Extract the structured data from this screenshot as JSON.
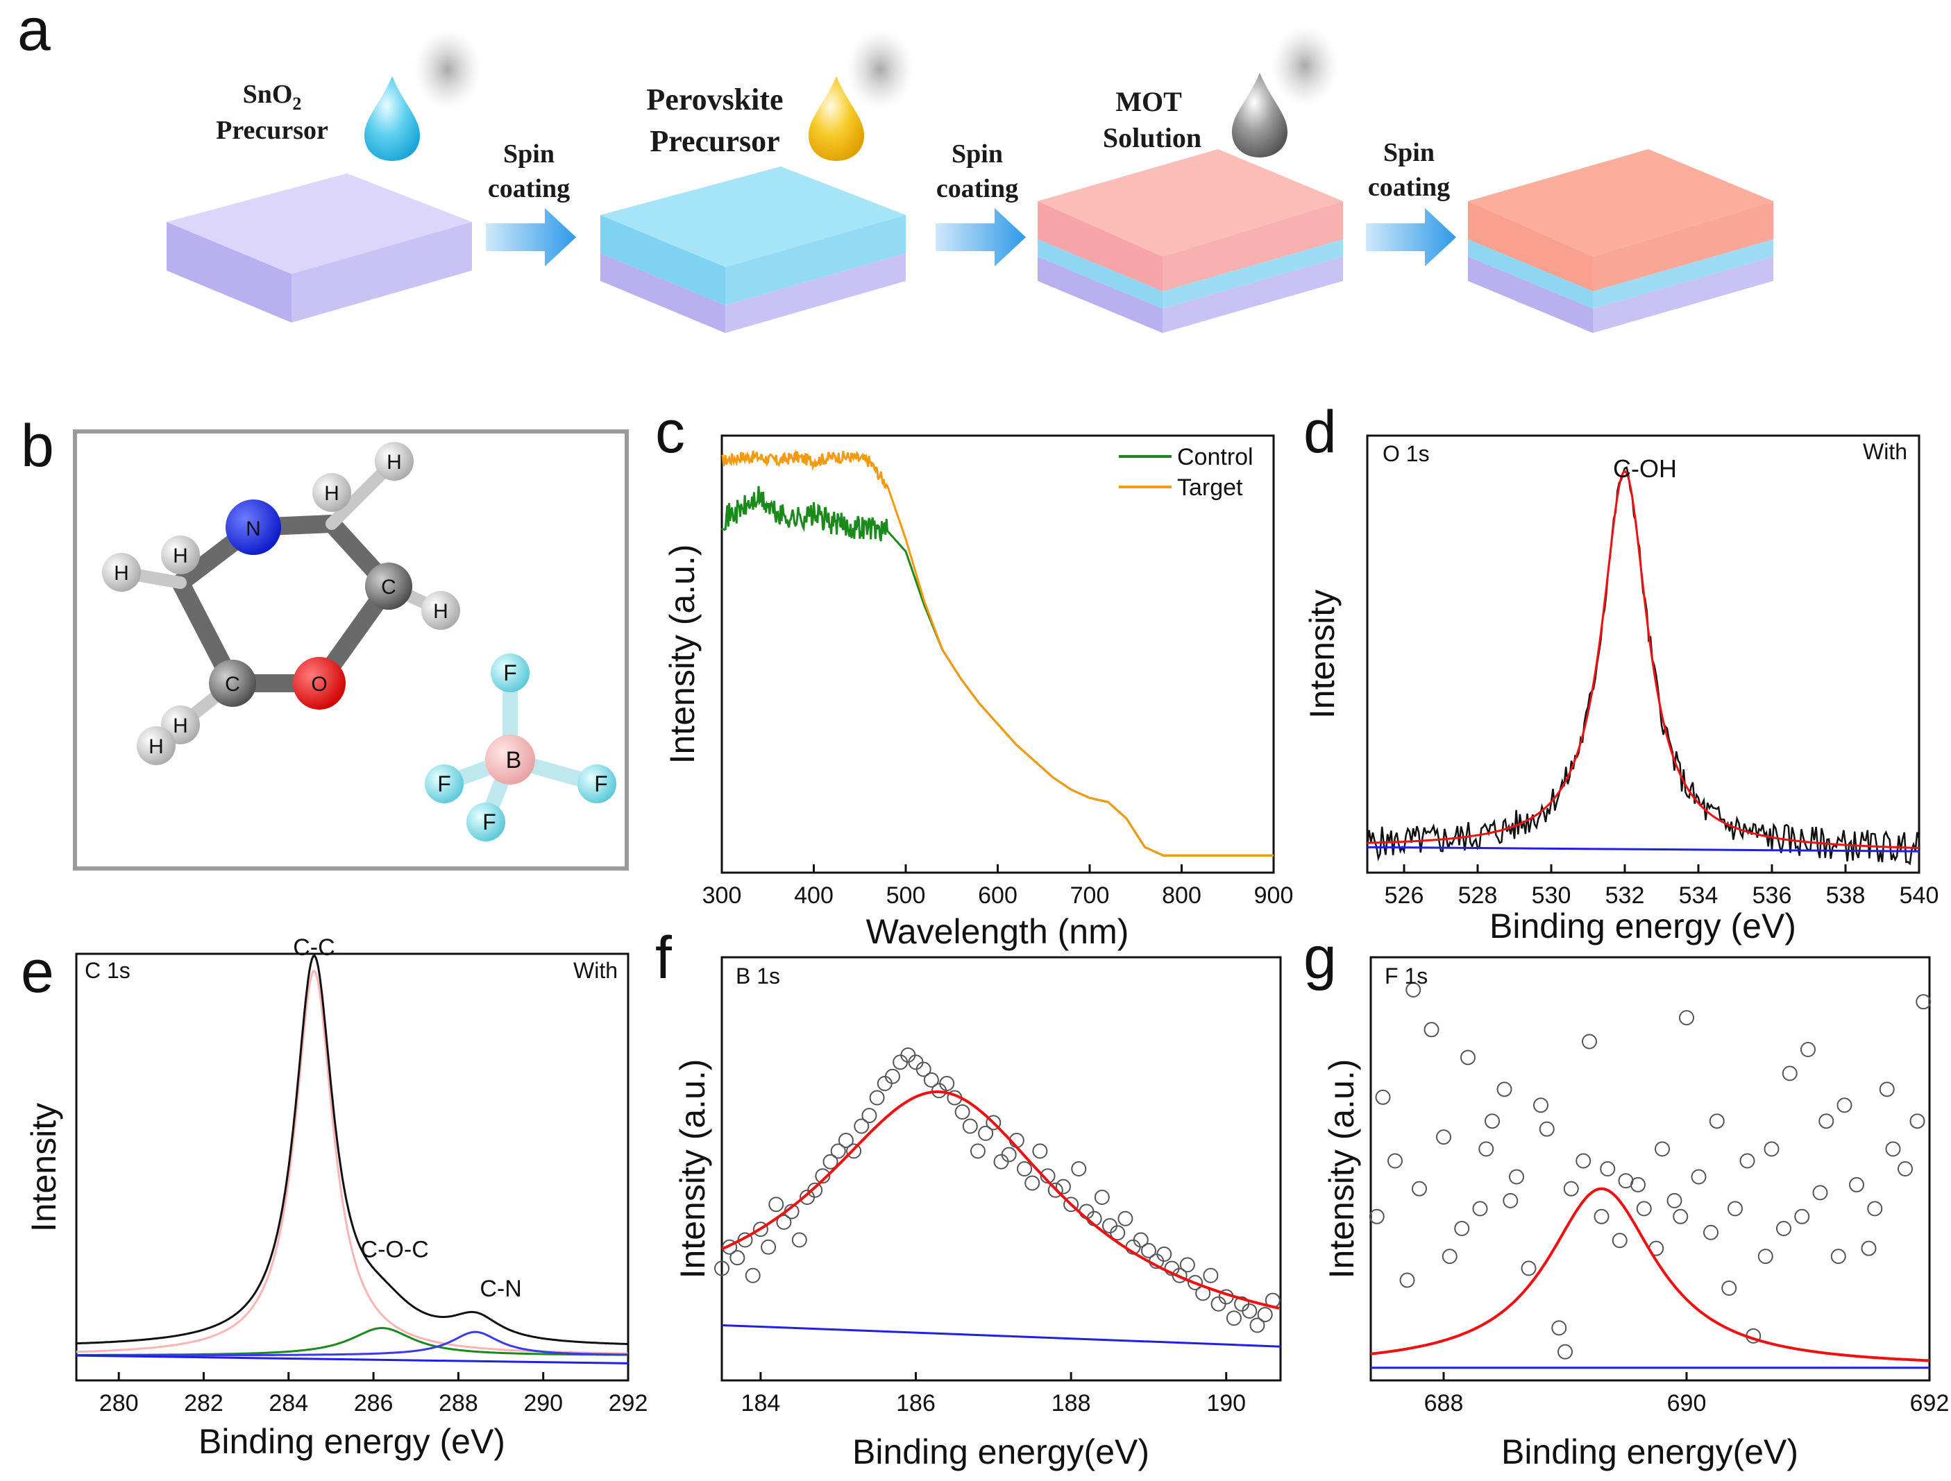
{
  "figure": {
    "panel_labels": [
      "a",
      "b",
      "c",
      "d",
      "e",
      "f",
      "g"
    ],
    "colors": {
      "green": "#1a8a1a",
      "orange": "#f59a0c",
      "red": "#ee1111",
      "blue": "#1f1fe6",
      "black": "#111111",
      "pink": "#ffb3b3",
      "navy": "#3a3ae8"
    }
  },
  "panel_a": {
    "steps": [
      {
        "label_line1": "SnO",
        "subscript": "2",
        "label_line2": "Precursor",
        "drop": "blue-droplet-icon"
      },
      {
        "label_line1": "Perovskite",
        "label_line2": "Precursor",
        "drop": "yellow-droplet-icon"
      },
      {
        "label_line1": "MOT",
        "label_line2": "Solution",
        "drop": "gray-droplet-icon"
      }
    ],
    "arrow_line1": "Spin",
    "arrow_line2": "coating"
  },
  "panel_b": {
    "atoms_ring": [
      "N",
      "H",
      "H",
      "H",
      "H",
      "H",
      "C",
      "H",
      "H",
      "C",
      "O"
    ],
    "atoms_bf4": [
      "F",
      "B",
      "F",
      "F",
      "F"
    ]
  },
  "chart_data": [
    {
      "id": "c",
      "type": "line",
      "title": "",
      "xlabel": "Wavelength (nm)",
      "ylabel": "Intensity (a.u.)",
      "xlim": [
        300,
        900
      ],
      "ylim": [
        0,
        1
      ],
      "xticks": [
        "300",
        "400",
        "500",
        "600",
        "700",
        "800",
        "900"
      ],
      "legend_position": "top-right",
      "series": [
        {
          "name": "Control",
          "color": "#1a8a1a",
          "x": [
            300,
            320,
            340,
            360,
            380,
            400,
            420,
            440,
            460,
            480,
            500,
            520,
            540,
            560,
            580,
            600,
            620,
            640,
            660,
            680,
            700,
            720,
            740,
            760,
            780,
            800,
            820,
            840,
            860,
            880,
            900
          ],
          "y": [
            0.83,
            0.85,
            0.88,
            0.84,
            0.83,
            0.84,
            0.82,
            0.81,
            0.81,
            0.8,
            0.75,
            0.62,
            0.51,
            0.44,
            0.38,
            0.33,
            0.28,
            0.24,
            0.2,
            0.17,
            0.15,
            0.14,
            0.1,
            0.03,
            0.01,
            0.01,
            0.01,
            0.01,
            0.01,
            0.01,
            0.01
          ]
        },
        {
          "name": "Target",
          "color": "#f59a0c",
          "x": [
            300,
            320,
            340,
            360,
            380,
            400,
            420,
            440,
            460,
            480,
            500,
            520,
            540,
            560,
            580,
            600,
            620,
            640,
            660,
            680,
            700,
            720,
            740,
            760,
            780,
            800,
            820,
            840,
            860,
            880,
            900
          ],
          "y": [
            0.97,
            0.98,
            0.98,
            0.97,
            0.98,
            0.97,
            0.98,
            0.98,
            0.97,
            0.91,
            0.78,
            0.63,
            0.51,
            0.44,
            0.38,
            0.33,
            0.28,
            0.24,
            0.2,
            0.17,
            0.15,
            0.14,
            0.1,
            0.03,
            0.01,
            0.01,
            0.01,
            0.01,
            0.01,
            0.01,
            0.01
          ]
        }
      ]
    },
    {
      "id": "d",
      "type": "line",
      "title": "O 1s",
      "corner_note": "With",
      "peak_label": "C-OH",
      "xlabel": "Binding energy (eV)",
      "ylabel": "Intensity",
      "xlim": [
        525,
        540
      ],
      "ylim": [
        0,
        1
      ],
      "xticks": [
        "526",
        "528",
        "530",
        "532",
        "534",
        "536",
        "538",
        "540"
      ],
      "peak": {
        "center": 532.0,
        "height": 0.92,
        "width": 0.75
      },
      "series": [
        {
          "name": "raw",
          "color": "#111111"
        },
        {
          "name": "fit",
          "color": "#ee1111"
        },
        {
          "name": "background",
          "color": "#1f1fe6",
          "x": [
            525,
            540
          ],
          "y": [
            0.03,
            0.02
          ]
        }
      ]
    },
    {
      "id": "e",
      "type": "line",
      "title": "C 1s",
      "corner_note": "With",
      "xlabel": "Binding energy (eV)",
      "ylabel": "Intensity",
      "xlim": [
        279,
        292
      ],
      "ylim": [
        0,
        1
      ],
      "xticks": [
        "280",
        "282",
        "284",
        "286",
        "288",
        "290",
        "292"
      ],
      "peak_labels": [
        {
          "text": "C-C",
          "x": 284.6,
          "y": 1.04
        },
        {
          "text": "C-O-C",
          "x": 286.5,
          "y": 0.27
        },
        {
          "text": "C-N",
          "x": 289.0,
          "y": 0.17
        }
      ],
      "components": [
        {
          "name": "C-C",
          "color": "#ffb3b3",
          "center": 284.6,
          "height": 0.98,
          "width": 0.55
        },
        {
          "name": "C-O-C",
          "color": "#1a8a1a",
          "center": 286.2,
          "height": 0.07,
          "width": 0.9
        },
        {
          "name": "C-N",
          "color": "#3a3ae8",
          "center": 288.4,
          "height": 0.06,
          "width": 0.7
        }
      ],
      "envelope_color": "#111111"
    },
    {
      "id": "f",
      "type": "scatter",
      "title": "B 1s",
      "xlabel": "Binding energy(eV)",
      "ylabel": "Intensity (a.u.)",
      "xlim": [
        183.5,
        190.7
      ],
      "ylim": [
        0,
        1
      ],
      "xticks": [
        "184",
        "186",
        "188",
        "190"
      ],
      "points_x": [
        183.5,
        183.6,
        183.7,
        183.8,
        183.9,
        184.0,
        184.1,
        184.2,
        184.3,
        184.4,
        184.5,
        184.6,
        184.7,
        184.8,
        184.9,
        185.0,
        185.1,
        185.2,
        185.3,
        185.4,
        185.5,
        185.6,
        185.7,
        185.8,
        185.9,
        186.0,
        186.1,
        186.2,
        186.3,
        186.4,
        186.5,
        186.6,
        186.7,
        186.8,
        186.9,
        187.0,
        187.1,
        187.2,
        187.3,
        187.4,
        187.5,
        187.6,
        187.7,
        187.8,
        187.9,
        188.0,
        188.1,
        188.2,
        188.3,
        188.4,
        188.5,
        188.6,
        188.7,
        188.8,
        188.9,
        189.0,
        189.1,
        189.2,
        189.3,
        189.4,
        189.5,
        189.6,
        189.7,
        189.8,
        189.9,
        190.0,
        190.1,
        190.2,
        190.3,
        190.4,
        190.5,
        190.6
      ],
      "points_y": [
        0.22,
        0.28,
        0.25,
        0.3,
        0.2,
        0.33,
        0.28,
        0.4,
        0.35,
        0.38,
        0.3,
        0.42,
        0.44,
        0.48,
        0.52,
        0.55,
        0.58,
        0.55,
        0.62,
        0.65,
        0.7,
        0.74,
        0.76,
        0.8,
        0.82,
        0.8,
        0.78,
        0.75,
        0.72,
        0.74,
        0.7,
        0.66,
        0.62,
        0.55,
        0.6,
        0.63,
        0.52,
        0.54,
        0.58,
        0.5,
        0.46,
        0.55,
        0.48,
        0.44,
        0.45,
        0.4,
        0.5,
        0.38,
        0.36,
        0.42,
        0.34,
        0.32,
        0.36,
        0.28,
        0.3,
        0.27,
        0.24,
        0.26,
        0.22,
        0.2,
        0.23,
        0.18,
        0.15,
        0.2,
        0.12,
        0.14,
        0.08,
        0.12,
        0.1,
        0.06,
        0.09,
        0.13
      ],
      "fit": {
        "center": 186.3,
        "height": 0.68,
        "width": 1.9,
        "baseline_start": 0.06,
        "baseline_end": 0.0
      },
      "fit_color": "#ee1111",
      "baseline_color": "#1f1fe6"
    },
    {
      "id": "g",
      "type": "scatter",
      "title": "F 1s",
      "xlabel": "Binding energy(eV)",
      "ylabel": "Intensity (a.u.)",
      "xlim": [
        687.4,
        692
      ],
      "ylim": [
        0,
        1
      ],
      "xticks": [
        "688",
        "690",
        "692"
      ],
      "points_x": [
        687.45,
        687.5,
        687.6,
        687.7,
        687.75,
        687.8,
        687.9,
        688.0,
        688.05,
        688.15,
        688.2,
        688.3,
        688.35,
        688.4,
        688.5,
        688.55,
        688.6,
        688.7,
        688.8,
        688.85,
        688.95,
        689.0,
        689.05,
        689.15,
        689.2,
        689.3,
        689.35,
        689.45,
        689.5,
        689.6,
        689.65,
        689.75,
        689.8,
        689.9,
        689.95,
        690.0,
        690.1,
        690.2,
        690.25,
        690.35,
        690.4,
        690.5,
        690.55,
        690.65,
        690.7,
        690.8,
        690.85,
        690.95,
        691.0,
        691.1,
        691.15,
        691.25,
        691.3,
        691.4,
        691.5,
        691.55,
        691.65,
        691.7,
        691.8,
        691.9,
        691.95
      ],
      "points_y": [
        0.38,
        0.68,
        0.52,
        0.22,
        0.95,
        0.45,
        0.85,
        0.58,
        0.28,
        0.35,
        0.78,
        0.4,
        0.55,
        0.62,
        0.7,
        0.42,
        0.48,
        0.25,
        0.66,
        0.6,
        0.1,
        0.04,
        0.45,
        0.52,
        0.82,
        0.38,
        0.5,
        0.32,
        0.47,
        0.46,
        0.4,
        0.3,
        0.55,
        0.42,
        0.38,
        0.88,
        0.48,
        0.34,
        0.62,
        0.2,
        0.4,
        0.52,
        0.08,
        0.28,
        0.55,
        0.35,
        0.74,
        0.38,
        0.8,
        0.44,
        0.62,
        0.28,
        0.66,
        0.46,
        0.3,
        0.4,
        0.7,
        0.55,
        0.5,
        0.62,
        0.92
      ],
      "fit": {
        "center": 689.3,
        "height": 0.45,
        "width": 0.55,
        "baseline_start": 0.0,
        "baseline_end": 0.0
      },
      "fit_color": "#ee1111",
      "baseline_color": "#1f1fe6"
    }
  ]
}
